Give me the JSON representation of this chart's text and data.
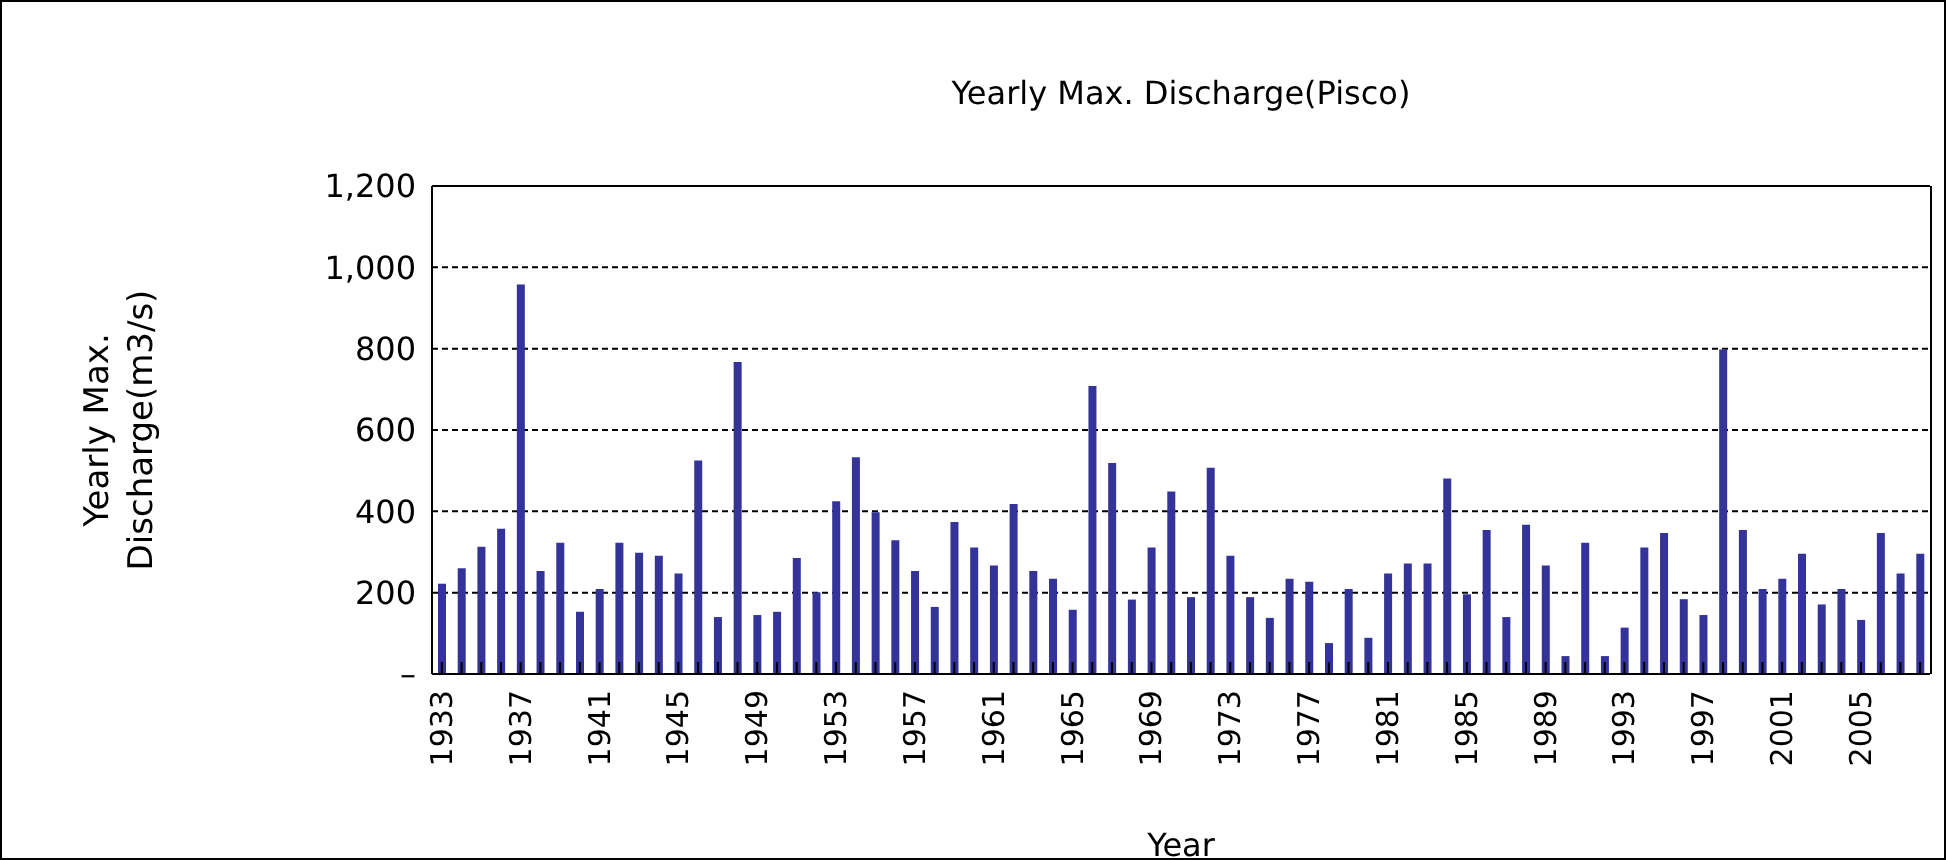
{
  "chart_data": {
    "type": "bar",
    "title": "Yearly Max. Discharge(Pisco)",
    "xlabel": "Year",
    "ylabel": "Yearly Max. Discharge(m3/s)",
    "categories": [
      "1933",
      null,
      null,
      null,
      "1937",
      null,
      null,
      null,
      "1941",
      null,
      null,
      null,
      "1945",
      null,
      null,
      null,
      "1949",
      null,
      null,
      null,
      "1953",
      null,
      null,
      null,
      "1957",
      null,
      null,
      null,
      "1961",
      null,
      null,
      null,
      "1965",
      null,
      null,
      null,
      "1969",
      null,
      null,
      null,
      "1973",
      null,
      null,
      null,
      "1977",
      null,
      null,
      null,
      "1981",
      null,
      null,
      null,
      "1985",
      null,
      null,
      null,
      "1989",
      null,
      null,
      null,
      "1993",
      null,
      null,
      null,
      "1997",
      null,
      null,
      null,
      "2001",
      null,
      null,
      null,
      "2005",
      null,
      null,
      null
    ],
    "values": [
      222,
      260,
      313,
      357,
      958,
      253,
      323,
      153,
      209,
      323,
      298,
      291,
      247,
      525,
      140,
      767,
      145,
      153,
      285,
      201,
      425,
      533,
      398,
      329,
      253,
      165,
      374,
      311,
      267,
      418,
      253,
      234,
      158,
      708,
      519,
      183,
      311,
      449,
      189,
      507,
      291,
      189,
      138,
      234,
      227,
      76,
      209,
      89,
      247,
      272,
      272,
      481,
      196,
      354,
      140,
      367,
      267,
      44,
      323,
      44,
      114,
      311,
      347,
      184,
      145,
      798,
      354,
      209,
      234,
      296,
      171,
      209,
      133,
      347,
      247,
      296
    ],
    "color": "#333399",
    "ylim": [
      0,
      1200
    ],
    "yticks": [
      {
        "value": 0,
        "label": "–"
      },
      {
        "value": 200,
        "label": "200"
      },
      {
        "value": 400,
        "label": "400"
      },
      {
        "value": 600,
        "label": "600"
      },
      {
        "value": 800,
        "label": "800"
      },
      {
        "value": 1000,
        "label": "1,000"
      },
      {
        "value": 1200,
        "label": "1,200"
      }
    ],
    "grid": "y"
  }
}
